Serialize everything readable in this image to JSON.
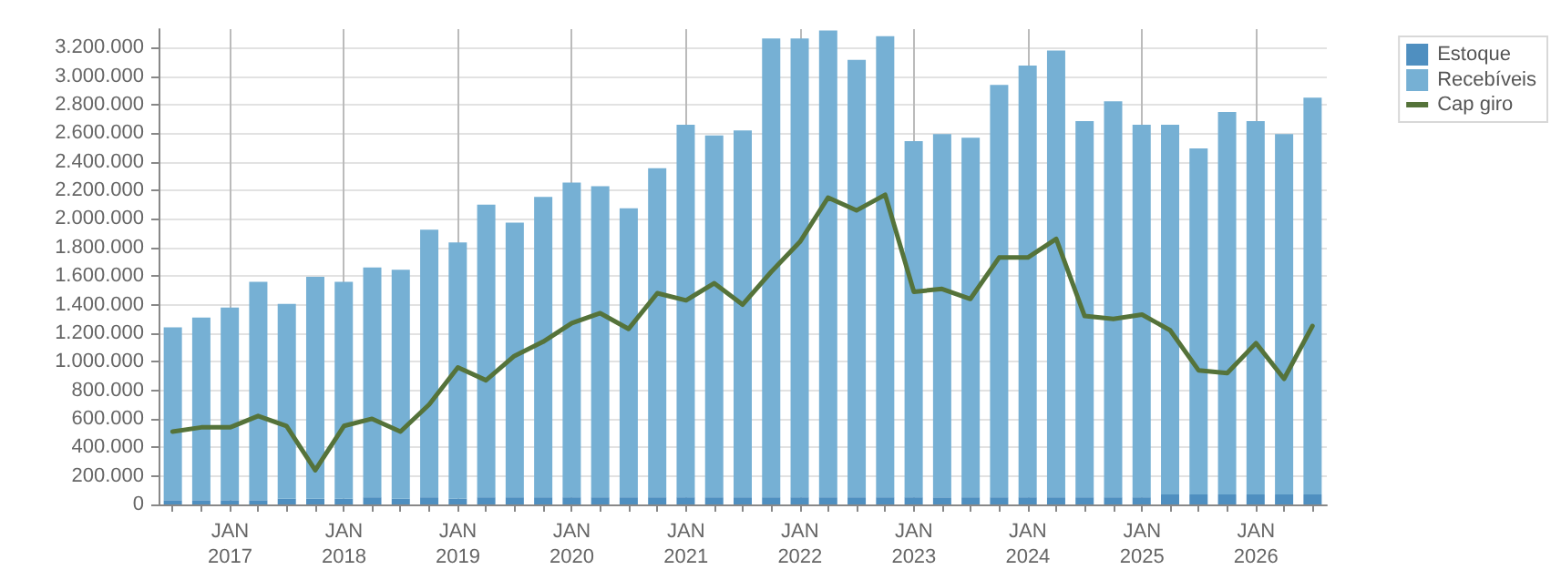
{
  "chart_data": {
    "type": "bar",
    "stacked": true,
    "x": [
      "2016-07",
      "2016-10",
      "2017-01",
      "2017-04",
      "2017-07",
      "2017-10",
      "2018-01",
      "2018-04",
      "2018-07",
      "2018-10",
      "2019-01",
      "2019-04",
      "2019-07",
      "2019-10",
      "2020-01",
      "2020-04",
      "2020-07",
      "2020-10",
      "2021-01",
      "2021-04",
      "2021-07",
      "2021-10",
      "2022-01",
      "2022-04",
      "2022-07",
      "2022-10",
      "2023-01",
      "2023-04",
      "2023-07",
      "2023-10",
      "2024-01",
      "2024-04",
      "2024-07",
      "2024-10",
      "2025-01",
      "2025-04",
      "2025-07",
      "2025-10",
      "2026-01",
      "2026-04",
      "2026-07"
    ],
    "series": [
      {
        "name": "Estoque",
        "color": "#4f8fc0",
        "values": [
          30000,
          30000,
          30000,
          30000,
          40000,
          40000,
          40000,
          50000,
          40000,
          50000,
          40000,
          50000,
          50000,
          50000,
          50000,
          50000,
          50000,
          50000,
          50000,
          50000,
          50000,
          50000,
          50000,
          50000,
          50000,
          50000,
          50000,
          50000,
          50000,
          50000,
          50000,
          50000,
          50000,
          50000,
          50000,
          70000,
          70000,
          70000,
          70000,
          70000,
          70000
        ]
      },
      {
        "name": "Recebíveis",
        "color": "#76b0d4",
        "values": [
          1210000,
          1280000,
          1350000,
          1530000,
          1365000,
          1555000,
          1520000,
          1610000,
          1605000,
          1875000,
          1795000,
          2050000,
          1925000,
          2105000,
          2205000,
          2180000,
          2025000,
          2305000,
          2610000,
          2535000,
          2570000,
          3215000,
          3215000,
          3270000,
          3065000,
          3230000,
          2495000,
          2545000,
          2520000,
          2890000,
          3025000,
          3130000,
          2635000,
          2775000,
          2610000,
          2590000,
          2425000,
          2680000,
          2615000,
          2525000,
          2780000
        ]
      },
      {
        "name": "Cap giro",
        "type": "line",
        "color": "#55733a",
        "values": [
          510000,
          540000,
          540000,
          620000,
          550000,
          240000,
          550000,
          600000,
          510000,
          700000,
          960000,
          870000,
          1040000,
          1140000,
          1270000,
          1340000,
          1230000,
          1480000,
          1430000,
          1550000,
          1400000,
          1630000,
          1840000,
          2150000,
          2060000,
          2170000,
          1490000,
          1510000,
          1440000,
          1730000,
          1730000,
          1860000,
          1320000,
          1300000,
          1330000,
          1220000,
          940000,
          920000,
          1130000,
          880000,
          1250000
        ]
      }
    ],
    "xlim": [
      "2016-05-17",
      "2026-08-16"
    ],
    "xticks": [
      {
        "value": "2016-07",
        "label": null
      },
      {
        "value": "2016-10",
        "label": null
      },
      {
        "value": "2017-01",
        "label": "JAN\n2017"
      },
      {
        "value": "2017-04",
        "label": null
      },
      {
        "value": "2017-07",
        "label": null
      },
      {
        "value": "2017-10",
        "label": null
      },
      {
        "value": "2018-01",
        "label": "JAN\n2018"
      },
      {
        "value": "2018-04",
        "label": null
      },
      {
        "value": "2018-07",
        "label": null
      },
      {
        "value": "2018-10",
        "label": null
      },
      {
        "value": "2019-01",
        "label": "JAN\n2019"
      },
      {
        "value": "2019-04",
        "label": null
      },
      {
        "value": "2019-07",
        "label": null
      },
      {
        "value": "2019-10",
        "label": null
      },
      {
        "value": "2020-01",
        "label": "JAN\n2020"
      },
      {
        "value": "2020-04",
        "label": null
      },
      {
        "value": "2020-07",
        "label": null
      },
      {
        "value": "2020-10",
        "label": null
      },
      {
        "value": "2021-01",
        "label": "JAN\n2021"
      },
      {
        "value": "2021-04",
        "label": null
      },
      {
        "value": "2021-07",
        "label": null
      },
      {
        "value": "2021-10",
        "label": null
      },
      {
        "value": "2022-01",
        "label": "JAN\n2022"
      },
      {
        "value": "2022-04",
        "label": null
      },
      {
        "value": "2022-07",
        "label": null
      },
      {
        "value": "2022-10",
        "label": null
      },
      {
        "value": "2023-01",
        "label": "JAN\n2023"
      },
      {
        "value": "2023-04",
        "label": null
      },
      {
        "value": "2023-07",
        "label": null
      },
      {
        "value": "2023-10",
        "label": null
      },
      {
        "value": "2024-01",
        "label": "JAN\n2024"
      },
      {
        "value": "2024-04",
        "label": null
      },
      {
        "value": "2024-07",
        "label": null
      },
      {
        "value": "2024-10",
        "label": null
      },
      {
        "value": "2025-01",
        "label": "JAN\n2025"
      },
      {
        "value": "2025-04",
        "label": null
      },
      {
        "value": "2025-07",
        "label": null
      },
      {
        "value": "2025-10",
        "label": null
      },
      {
        "value": "2026-01",
        "label": "JAN\n2026"
      },
      {
        "value": "2026-04",
        "label": null
      },
      {
        "value": "2026-07",
        "label": null
      }
    ],
    "ylim": [
      0,
      3330000
    ],
    "yticks": [
      {
        "value": 0,
        "label": "0"
      },
      {
        "value": 200000,
        "label": "200.000"
      },
      {
        "value": 400000,
        "label": "400.000"
      },
      {
        "value": 600000,
        "label": "600.000"
      },
      {
        "value": 800000,
        "label": "800.000"
      },
      {
        "value": 1000000,
        "label": "1.000.000"
      },
      {
        "value": 1200000,
        "label": "1.200.000"
      },
      {
        "value": 1400000,
        "label": "1.400.000"
      },
      {
        "value": 1600000,
        "label": "1.600.000"
      },
      {
        "value": 1800000,
        "label": "1.800.000"
      },
      {
        "value": 2000000,
        "label": "2.000.000"
      },
      {
        "value": 2200000,
        "label": "2.200.000"
      },
      {
        "value": 2400000,
        "label": "2.400.000"
      },
      {
        "value": 2600000,
        "label": "2.600.000"
      },
      {
        "value": 2800000,
        "label": "2.800.000"
      },
      {
        "value": 3000000,
        "label": "3.000.000"
      },
      {
        "value": 3200000,
        "label": "3.200.000"
      }
    ],
    "grid": true,
    "legend": "top right",
    "marker": "none",
    "line_style": "solid"
  }
}
